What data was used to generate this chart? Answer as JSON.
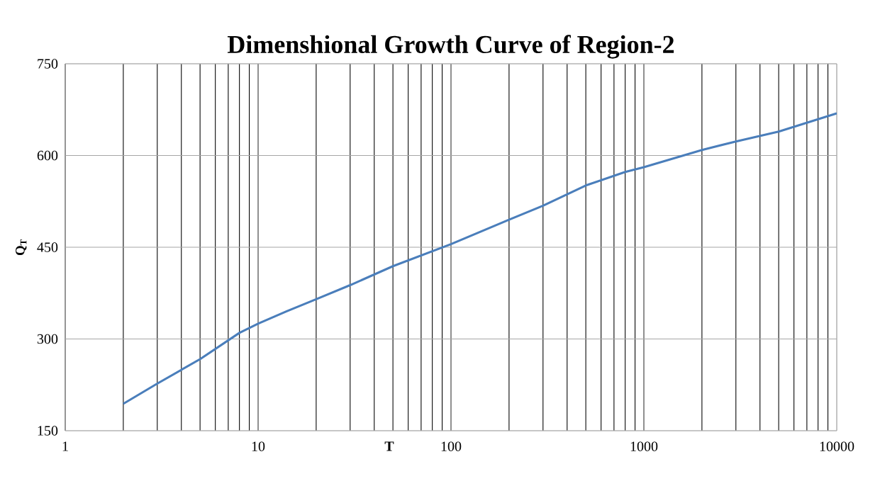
{
  "chart_data": {
    "type": "line",
    "title": "Dimenshional Growth Curve of Region-2",
    "xlabel": "T",
    "ylabel": "Q$_{T}$",
    "log": "x",
    "x": [
      2,
      3,
      5,
      8,
      10,
      14,
      20,
      30,
      50,
      100,
      200,
      300,
      500,
      800,
      1000,
      2000,
      3000,
      5000,
      10000
    ],
    "series": [
      {
        "color": "#4a7ebb",
        "values": [
          194,
          227,
          267,
          310,
          325,
          345,
          365,
          388,
          419,
          455,
          495,
          518,
          551,
          573,
          581,
          609,
          623,
          639,
          669
        ]
      }
    ],
    "xlim": [
      1,
      10000
    ],
    "ylim": [
      150,
      750
    ],
    "xticks": [
      1,
      10,
      100,
      1000,
      10000
    ],
    "yticks": [
      150,
      300,
      450,
      600,
      750
    ],
    "grid": true,
    "marker": "none",
    "line_style": "solid"
  }
}
